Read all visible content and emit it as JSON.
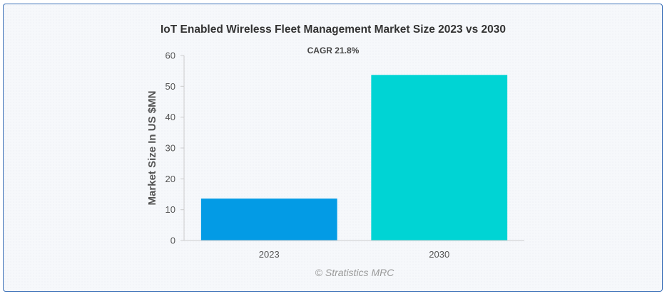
{
  "chart_data": {
    "type": "bar",
    "title": "IoT Enabled Wireless Fleet Management Market Size 2023 vs 2030",
    "subtitle": "CAGR 21.8%",
    "xlabel": "",
    "ylabel": "Market Size In US $MN",
    "categories": [
      "2023",
      "2030"
    ],
    "values": [
      13.6,
      53.7
    ],
    "colors": [
      "#039be5",
      "#00d4d4"
    ],
    "ylim": [
      0,
      60
    ],
    "yticks": [
      0,
      10,
      20,
      30,
      40,
      50,
      60
    ],
    "grid": false,
    "legend": "none"
  },
  "credit": "© Stratistics MRC"
}
